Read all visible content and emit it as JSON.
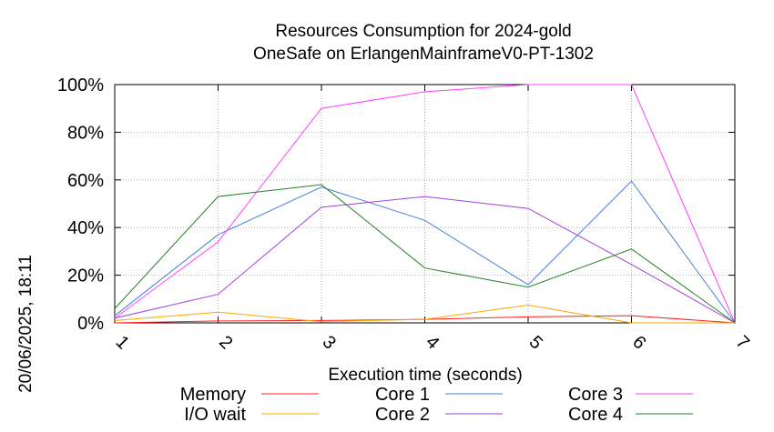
{
  "chart_data": {
    "type": "line",
    "title_line1": "Resources Consumption for 2024-gold",
    "title_line2": "OneSafe on ErlangenMainframeV0-PT-1302",
    "xlabel": "Execution time (seconds)",
    "ylabel": "",
    "side_label": "20/06/2025, 18:11",
    "x": [
      1,
      2,
      3,
      4,
      5,
      6,
      7
    ],
    "xlim": [
      1,
      7
    ],
    "ylim": [
      0,
      100
    ],
    "y_ticks": [
      "0%",
      "20%",
      "40%",
      "60%",
      "80%",
      "100%"
    ],
    "y_tick_values": [
      0,
      20,
      40,
      60,
      80,
      100
    ],
    "x_ticks": [
      "1",
      "2",
      "3",
      "4",
      "5",
      "6",
      "7"
    ],
    "grid": true,
    "legend_placement": "bottom",
    "series": [
      {
        "name": "Memory",
        "color": "#ff2020",
        "values": [
          0,
          0.8,
          1,
          1.5,
          2.5,
          3,
          0
        ]
      },
      {
        "name": "I/O wait",
        "color": "#ffa500",
        "values": [
          1,
          4.5,
          0.5,
          1.5,
          7.5,
          0,
          0
        ]
      },
      {
        "name": "Core 1",
        "color": "#4a7fd6",
        "values": [
          3,
          37,
          57,
          43,
          16,
          59.5,
          0
        ]
      },
      {
        "name": "Core 2",
        "color": "#a040e0",
        "values": [
          2,
          12,
          48.5,
          53,
          48,
          24.5,
          0
        ]
      },
      {
        "name": "Core 3",
        "color": "#ff40ff",
        "values": [
          2,
          34,
          90,
          97,
          100,
          100,
          0
        ]
      },
      {
        "name": "Core 4",
        "color": "#208020",
        "values": [
          6,
          53,
          58,
          23,
          15,
          31,
          0
        ]
      }
    ]
  }
}
